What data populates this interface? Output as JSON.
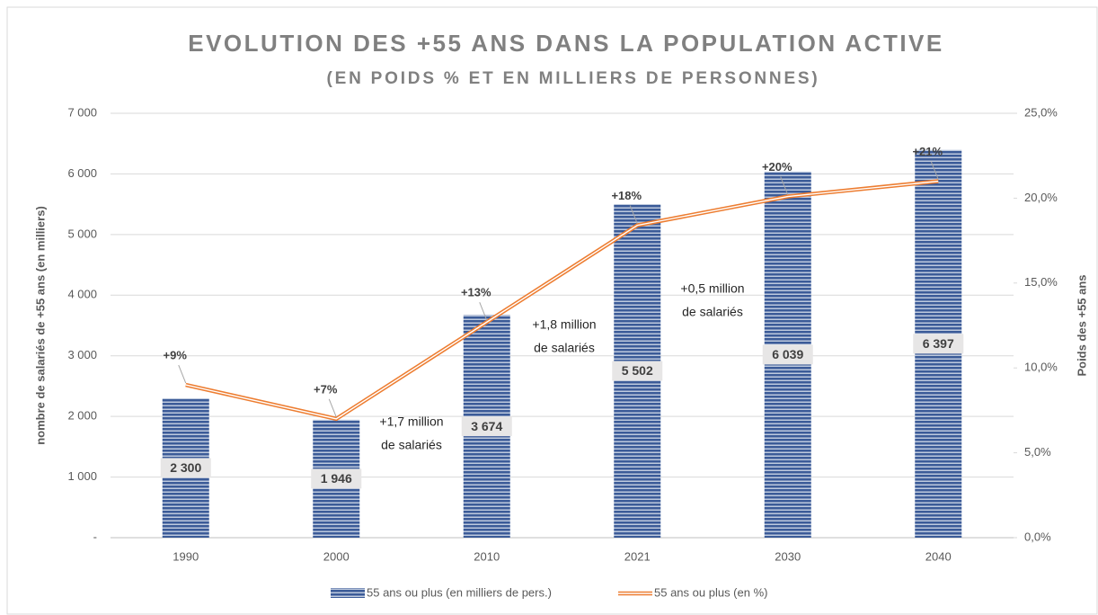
{
  "chart_data": {
    "type": "bar_line",
    "title": "EVOLUTION DES +55 ANS DANS LA POPULATION ACTIVE",
    "subtitle": "(EN POIDS % ET EN MILLIERS DE PERSONNES)",
    "y_label": "nombre de salariés de +55 ans (en milliers)",
    "y2_label": "Poids des +55 ans",
    "categories": [
      "1990",
      "2000",
      "2010",
      "2021",
      "2030",
      "2040"
    ],
    "series": [
      {
        "name": "55 ans ou plus (en milliers de pers.)",
        "type": "bar",
        "color": "#3b5b98",
        "values": [
          2300,
          1946,
          3674,
          5502,
          6039,
          6397
        ],
        "value_labels": [
          "2 300",
          "1 946",
          "3 674",
          "5 502",
          "6 039",
          "6 397"
        ]
      },
      {
        "name": "55 ans ou plus (en %)",
        "type": "line",
        "axis": "y2",
        "color": "#ed7d31",
        "values": [
          9,
          7,
          12.7,
          18.4,
          20.1,
          21
        ],
        "value_labels": [
          "+9%",
          "+7%",
          "+13%",
          "+18%",
          "+20%",
          "+21%"
        ]
      }
    ],
    "ylim": [
      0,
      7000
    ],
    "yticks": [
      {
        "value": 0,
        "label": "-"
      },
      {
        "value": 1000,
        "label": "1 000"
      },
      {
        "value": 2000,
        "label": "2 000"
      },
      {
        "value": 3000,
        "label": "3 000"
      },
      {
        "value": 4000,
        "label": "4 000"
      },
      {
        "value": 5000,
        "label": "5 000"
      },
      {
        "value": 6000,
        "label": "6 000"
      },
      {
        "value": 7000,
        "label": "7 000"
      }
    ],
    "y2lim": [
      0,
      25
    ],
    "y2ticks": [
      {
        "value": 0,
        "label": "0,0%"
      },
      {
        "value": 5,
        "label": "5,0%"
      },
      {
        "value": 10,
        "label": "10,0%"
      },
      {
        "value": 15,
        "label": "15,0%"
      },
      {
        "value": 20,
        "label": "20,0%"
      },
      {
        "value": 25,
        "label": "25,0%"
      }
    ],
    "grid": true,
    "legend": "bottom",
    "annotations": [
      {
        "lines": [
          "+1,7 million",
          "de salariés"
        ]
      },
      {
        "lines": [
          "+1,8 million",
          "de salariés"
        ]
      },
      {
        "lines": [
          "+0,5 million",
          "de salariés"
        ]
      }
    ]
  }
}
